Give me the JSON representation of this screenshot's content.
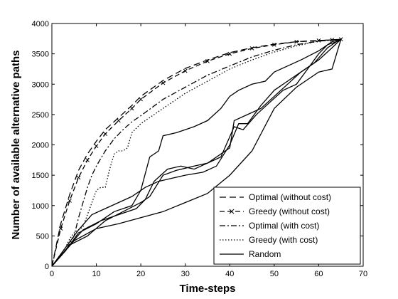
{
  "chart_data": {
    "type": "line",
    "title": "",
    "xlabel": "Time-steps",
    "ylabel": "Number of available alternative paths",
    "xlim": [
      0,
      70
    ],
    "ylim": [
      0,
      4000
    ],
    "xticks": [
      0,
      10,
      20,
      30,
      40,
      50,
      60,
      70
    ],
    "yticks": [
      0,
      500,
      1000,
      1500,
      2000,
      2500,
      3000,
      3500,
      4000
    ],
    "grid": false,
    "legend_position": "bottom-right",
    "series": [
      {
        "name": "Optimal (without cost)",
        "style": "dashed",
        "color": "#000000",
        "x": [
          0,
          2,
          4,
          6,
          8,
          10,
          12,
          15,
          18,
          20,
          25,
          30,
          35,
          40,
          45,
          50,
          55,
          60,
          63,
          65
        ],
        "y": [
          0,
          700,
          1180,
          1580,
          1850,
          2060,
          2250,
          2450,
          2650,
          2800,
          3060,
          3260,
          3400,
          3520,
          3600,
          3660,
          3700,
          3720,
          3730,
          3740
        ]
      },
      {
        "name": "Greedy (without cost)",
        "style": "dash-x",
        "color": "#000000",
        "x": [
          0,
          2,
          4,
          6,
          8,
          10,
          12,
          15,
          18,
          20,
          25,
          30,
          35,
          40,
          45,
          50,
          55,
          60,
          63,
          65
        ],
        "y": [
          0,
          620,
          1080,
          1460,
          1750,
          1980,
          2180,
          2400,
          2600,
          2750,
          3020,
          3220,
          3380,
          3500,
          3590,
          3650,
          3700,
          3720,
          3730,
          3740
        ]
      },
      {
        "name": "Optimal (with cost)",
        "style": "dash-dot",
        "color": "#000000",
        "x": [
          0,
          3,
          5,
          6,
          7,
          8,
          9,
          10,
          12,
          14,
          16,
          18,
          20,
          25,
          30,
          35,
          40,
          45,
          50,
          55,
          60,
          65
        ],
        "y": [
          0,
          250,
          500,
          800,
          1050,
          1300,
          1500,
          1650,
          1900,
          2100,
          2250,
          2380,
          2480,
          2750,
          2950,
          3150,
          3300,
          3450,
          3560,
          3650,
          3710,
          3740
        ]
      },
      {
        "name": "Greedy (with cost)",
        "style": "dotted",
        "color": "#000000",
        "x": [
          0,
          3,
          4,
          5,
          7,
          8,
          10,
          11,
          12,
          13,
          14,
          15,
          16,
          17,
          18,
          20,
          22,
          25,
          30,
          35,
          40,
          45,
          50,
          55,
          60,
          65
        ],
        "y": [
          0,
          300,
          450,
          550,
          650,
          850,
          1250,
          1300,
          1300,
          1600,
          1850,
          1900,
          1900,
          1950,
          2200,
          2350,
          2450,
          2600,
          2850,
          3050,
          3250,
          3400,
          3530,
          3630,
          3710,
          3740
        ]
      },
      {
        "name": "Random",
        "style": "solid",
        "color": "#000000",
        "x": [
          0,
          5,
          10,
          15,
          20,
          25,
          30,
          35,
          40,
          45,
          50,
          55,
          60,
          63,
          65
        ],
        "y": [
          0,
          420,
          620,
          700,
          800,
          900,
          1050,
          1200,
          1500,
          1900,
          2600,
          2950,
          3200,
          3250,
          3740
        ]
      },
      {
        "name": "",
        "style": "solid",
        "color": "#000000",
        "x": [
          0,
          4,
          8,
          12,
          16,
          20,
          22,
          25,
          28,
          32,
          35,
          38,
          41,
          43,
          46,
          49,
          52,
          55,
          58,
          60,
          62,
          64,
          65
        ],
        "y": [
          0,
          350,
          500,
          750,
          900,
          1050,
          1150,
          1500,
          1580,
          1650,
          1700,
          1800,
          2300,
          2250,
          2500,
          2700,
          2900,
          3000,
          3300,
          3500,
          3650,
          3700,
          3740
        ]
      },
      {
        "name": "",
        "style": "solid",
        "color": "#000000",
        "x": [
          0,
          3,
          6,
          10,
          14,
          18,
          20,
          22,
          24,
          25,
          28,
          32,
          35,
          38,
          40,
          42,
          45,
          48,
          50,
          53,
          56,
          60,
          63,
          65
        ],
        "y": [
          0,
          250,
          550,
          700,
          900,
          1000,
          1250,
          1800,
          1900,
          2150,
          2200,
          2300,
          2400,
          2600,
          2800,
          2900,
          3000,
          3050,
          3200,
          3300,
          3400,
          3550,
          3700,
          3740
        ]
      },
      {
        "name": "",
        "style": "solid",
        "color": "#000000",
        "x": [
          0,
          3,
          6,
          9,
          12,
          15,
          18,
          21,
          24,
          27,
          30,
          34,
          37,
          40,
          42,
          44,
          47,
          50,
          53,
          56,
          59,
          62,
          64,
          65
        ],
        "y": [
          0,
          300,
          600,
          850,
          950,
          1050,
          1150,
          1300,
          1400,
          1450,
          1500,
          1550,
          1650,
          2000,
          2350,
          2350,
          2650,
          2900,
          3050,
          3200,
          3350,
          3600,
          3700,
          3740
        ]
      },
      {
        "name": "",
        "style": "solid",
        "color": "#000000",
        "x": [
          0,
          4,
          7,
          11,
          15,
          19,
          21,
          23,
          26,
          29,
          32,
          35,
          38,
          40,
          41,
          44,
          47,
          50,
          53,
          56,
          60,
          63,
          65
        ],
        "y": [
          0,
          350,
          600,
          750,
          850,
          950,
          1100,
          1400,
          1600,
          1650,
          1600,
          1700,
          1850,
          1950,
          2400,
          2500,
          2600,
          2800,
          3000,
          3200,
          3400,
          3600,
          3740
        ]
      }
    ]
  }
}
